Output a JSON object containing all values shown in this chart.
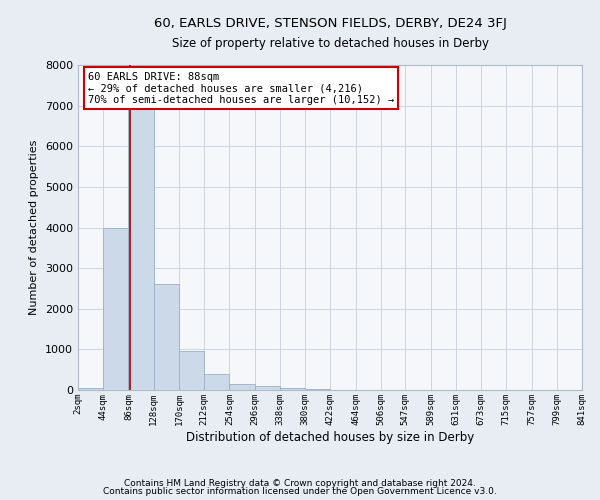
{
  "title1": "60, EARLS DRIVE, STENSON FIELDS, DERBY, DE24 3FJ",
  "title2": "Size of property relative to detached houses in Derby",
  "xlabel": "Distribution of detached houses by size in Derby",
  "ylabel": "Number of detached properties",
  "footer1": "Contains HM Land Registry data © Crown copyright and database right 2024.",
  "footer2": "Contains public sector information licensed under the Open Government Licence v3.0.",
  "property_size": 88,
  "annotation_title": "60 EARLS DRIVE: 88sqm",
  "annotation_line1": "← 29% of detached houses are smaller (4,216)",
  "annotation_line2": "70% of semi-detached houses are larger (10,152) →",
  "bar_edges": [
    2,
    44,
    86,
    128,
    170,
    212,
    254,
    296,
    338,
    380,
    422,
    464,
    506,
    547,
    589,
    631,
    673,
    715,
    757,
    799,
    841
  ],
  "bar_heights": [
    60,
    4000,
    7500,
    2600,
    950,
    400,
    150,
    100,
    50,
    20,
    10,
    3,
    1,
    0,
    0,
    0,
    0,
    0,
    0,
    0
  ],
  "bar_color": "#ccd9e8",
  "bar_edge_color": "#9ab0c8",
  "red_line_color": "#aa0000",
  "background_color": "#e8edf4",
  "plot_bg_color": "#f5f7fb",
  "grid_color": "#c8d0de",
  "ylim": [
    0,
    8000
  ],
  "xlim": [
    2,
    841
  ],
  "yticks": [
    0,
    1000,
    2000,
    3000,
    4000,
    5000,
    6000,
    7000,
    8000
  ]
}
